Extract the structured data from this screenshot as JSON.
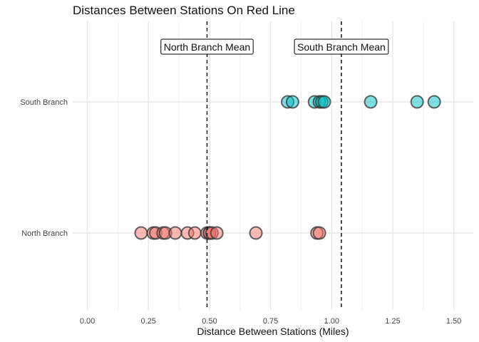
{
  "chart_data": {
    "type": "scatter",
    "title": "Distances Between Stations On Red Line",
    "xlabel": "Distance Between Stations (Miles)",
    "ylabel": "",
    "xlim": [
      -0.06,
      1.58
    ],
    "x_ticks": [
      0.0,
      0.25,
      0.5,
      0.75,
      1.0,
      1.25,
      1.5
    ],
    "x_tick_labels": [
      "0.00",
      "0.25",
      "0.50",
      "0.75",
      "1.00",
      "1.25",
      "1.50"
    ],
    "categories": [
      "North Branch",
      "South Branch"
    ],
    "grid": true,
    "legend": "none",
    "series": [
      {
        "category": "North Branch",
        "color": "#F8766D",
        "x": [
          0.22,
          0.27,
          0.28,
          0.31,
          0.32,
          0.36,
          0.41,
          0.44,
          0.49,
          0.5,
          0.5,
          0.51,
          0.53,
          0.69,
          0.94,
          0.95
        ]
      },
      {
        "category": "South Branch",
        "color": "#00BFC4",
        "x": [
          0.82,
          0.84,
          0.93,
          0.95,
          0.96,
          0.97,
          1.16,
          1.35,
          1.42
        ]
      }
    ],
    "reference_lines": [
      {
        "x": 0.49,
        "label": "North Branch Mean"
      },
      {
        "x": 1.04,
        "label": "South Branch Mean"
      }
    ]
  }
}
